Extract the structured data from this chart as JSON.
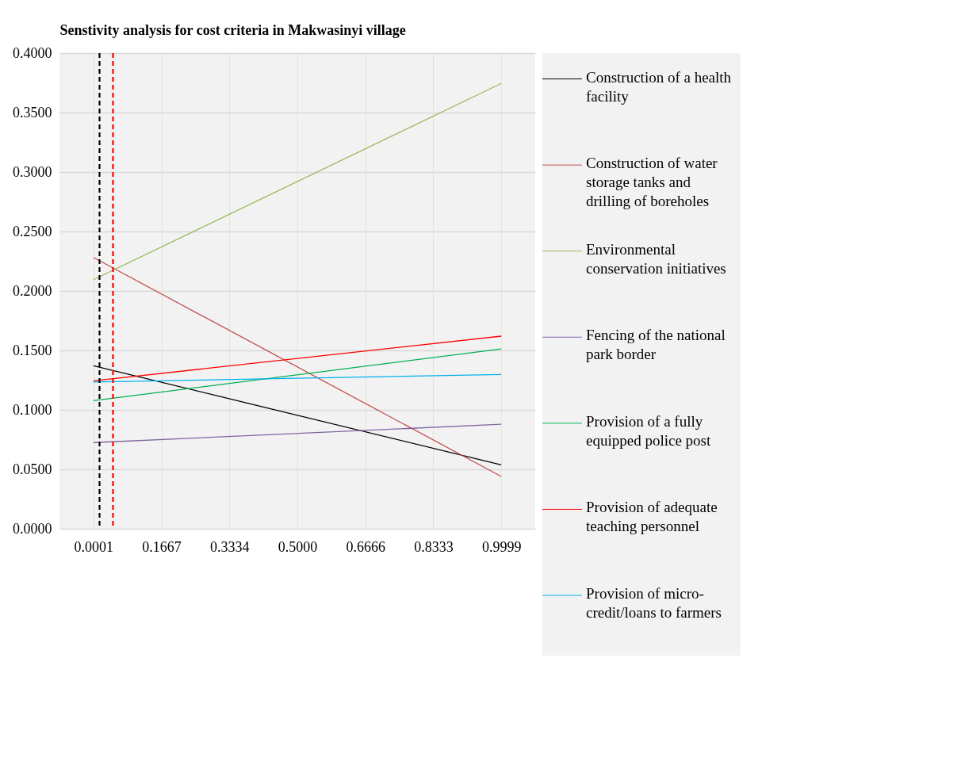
{
  "chart_data": {
    "type": "line",
    "title": "Senstivity analysis for cost criteria in Makwasinyi village",
    "xlim": [
      -0.0832,
      1.0832
    ],
    "xticks": [
      {
        "value": 0.0001,
        "label": "0.0001"
      },
      {
        "value": 0.1667,
        "label": "0.1667"
      },
      {
        "value": 0.3334,
        "label": "0.3334"
      },
      {
        "value": 0.5,
        "label": "0.5000"
      },
      {
        "value": 0.6666,
        "label": "0.6666"
      },
      {
        "value": 0.8333,
        "label": "0.8333"
      },
      {
        "value": 0.9999,
        "label": "0.9999"
      }
    ],
    "ylim": [
      0,
      0.4
    ],
    "yticks": [
      {
        "value": 0,
        "label": "0.0000"
      },
      {
        "value": 0.05,
        "label": "0.0500"
      },
      {
        "value": 0.1,
        "label": "0.1000"
      },
      {
        "value": 0.15,
        "label": "0.1500"
      },
      {
        "value": 0.2,
        "label": "0.2000"
      },
      {
        "value": 0.25,
        "label": "0.2500"
      },
      {
        "value": 0.3,
        "label": "0.3000"
      },
      {
        "value": 0.35,
        "label": "0.3500"
      },
      {
        "value": 0.4,
        "label": "0.4000"
      }
    ],
    "x": [
      0.0001,
      0.9999
    ],
    "series": [
      {
        "name": "Construction of a health facility",
        "color": "#000000",
        "values": [
          0.1371,
          0.0538
        ]
      },
      {
        "name": "Construction of water storage tanks and drilling of boreholes",
        "color": "#c0504d",
        "values": [
          0.2282,
          0.044
        ]
      },
      {
        "name": "Environmental conservation initiatives",
        "color": "#9bbb59",
        "values": [
          0.2095,
          0.3745
        ]
      },
      {
        "name": "Fencing of the national park border",
        "color": "#8064a2",
        "values": [
          0.0725,
          0.0879
        ]
      },
      {
        "name": "Provision of a fully equipped police post",
        "color": "#00b050",
        "values": [
          0.1077,
          0.1513
        ]
      },
      {
        "name": "Provision of adequate teaching personnel",
        "color": "#ff0000",
        "values": [
          0.1244,
          0.162
        ]
      },
      {
        "name": "Provision of micro-credit/loans to farmers",
        "color": "#00b0f0",
        "values": [
          0.1234,
          0.1298
        ]
      }
    ],
    "ref_lines": [
      {
        "axis": "x",
        "value": 0.015,
        "color": "#000000",
        "line_style": "dashed"
      },
      {
        "axis": "x",
        "value": 0.048,
        "color": "#ff0000",
        "line_style": "dashed"
      }
    ],
    "grid": true,
    "legend": "right",
    "marker": "none",
    "line_style": "solid"
  }
}
